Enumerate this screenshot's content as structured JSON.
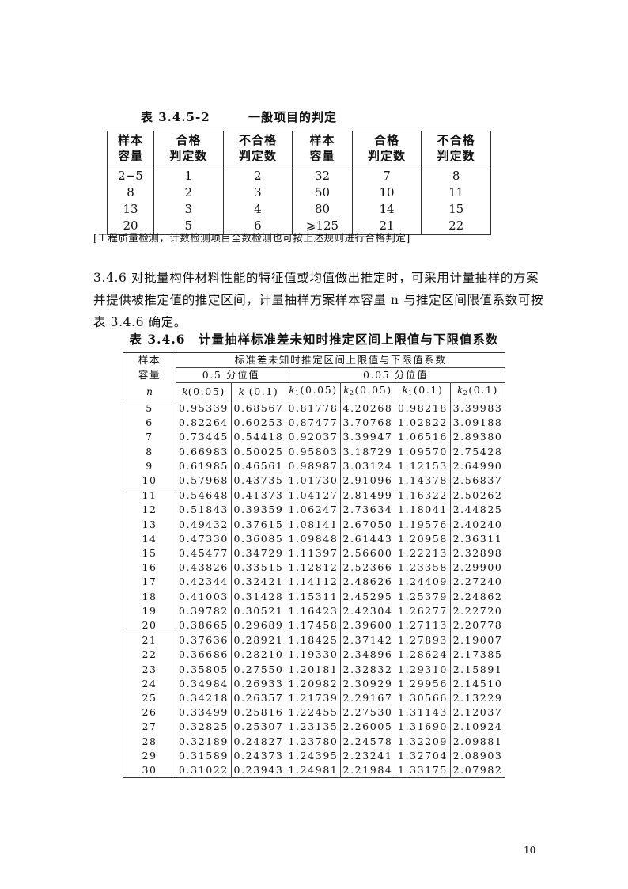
{
  "table1": {
    "number": "表 3.4.5-2",
    "title": "一般项目的判定",
    "headers": [
      [
        "样本",
        "容量"
      ],
      [
        "合格",
        "判定数"
      ],
      [
        "不合格",
        "判定数"
      ],
      [
        "样本",
        "容量"
      ],
      [
        "合格",
        "判定数"
      ],
      [
        "不合格",
        "判定数"
      ]
    ],
    "rows": [
      [
        "2−5",
        "1",
        "2",
        "32",
        "7",
        "8"
      ],
      [
        "8",
        "2",
        "3",
        "50",
        "10",
        "11"
      ],
      [
        "13",
        "3",
        "4",
        "80",
        "14",
        "15"
      ],
      [
        "20",
        "5",
        "6",
        "⩾125",
        "21",
        "22"
      ]
    ],
    "note": "[工程质量检测，计数检测项目全数检测也可按上述规则进行合格判定]"
  },
  "paragraph": {
    "lines": [
      "3.4.6 对批量构件材料性能的特征值或均值做出推定时，可采用计量抽样的方案",
      "并提供被推定值的推定区间，计量抽样方案样本容量 n 与推定区间限值系数可按",
      "表 3.4.6 确定。"
    ]
  },
  "table2": {
    "title": "表 3.4.6　计量抽样标准差未知时推定区间上限值与下限值系数",
    "header_sample": [
      "样本",
      "容量",
      "n"
    ],
    "header_group": "标准差未知时推定区间上限值与下限值系数",
    "header_q05": "0.5 分位值",
    "header_q005": "0.05 分位值",
    "columns": [
      {
        "sym": "k",
        "sub": "",
        "arg": "(0.05)"
      },
      {
        "sym": "k",
        "sub": "",
        "arg": " (0.1)"
      },
      {
        "sym": "k",
        "sub": "1",
        "arg": "(0.05)"
      },
      {
        "sym": "k",
        "sub": "2",
        "arg": "(0.05)"
      },
      {
        "sym": "k",
        "sub": "1",
        "arg": "(0.1)"
      },
      {
        "sym": "k",
        "sub": "2",
        "arg": "(0.1)"
      }
    ],
    "rows": [
      [
        "5",
        "0.95339",
        "0.68567",
        "0.81778",
        "4.20268",
        "0.98218",
        "3.39983"
      ],
      [
        "6",
        "0.82264",
        "0.60253",
        "0.87477",
        "3.70768",
        "1.02822",
        "3.09188"
      ],
      [
        "7",
        "0.73445",
        "0.54418",
        "0.92037",
        "3.39947",
        "1.06516",
        "2.89380"
      ],
      [
        "8",
        "0.66983",
        "0.50025",
        "0.95803",
        "3.18729",
        "1.09570",
        "2.75428"
      ],
      [
        "9",
        "0.61985",
        "0.46561",
        "0.98987",
        "3.03124",
        "1.12153",
        "2.64990"
      ],
      [
        "10",
        "0.57968",
        "0.43735",
        "1.01730",
        "2.91096",
        "1.14378",
        "2.56837"
      ],
      [
        "11",
        "0.54648",
        "0.41373",
        "1.04127",
        "2.81499",
        "1.16322",
        "2.50262"
      ],
      [
        "12",
        "0.51843",
        "0.39359",
        "1.06247",
        "2.73634",
        "1.18041",
        "2.44825"
      ],
      [
        "13",
        "0.49432",
        "0.37615",
        "1.08141",
        "2.67050",
        "1.19576",
        "2.40240"
      ],
      [
        "14",
        "0.47330",
        "0.36085",
        "1.09848",
        "2.61443",
        "1.20958",
        "2.36311"
      ],
      [
        "15",
        "0.45477",
        "0.34729",
        "1.11397",
        "2.56600",
        "1.22213",
        "2.32898"
      ],
      [
        "16",
        "0.43826",
        "0.33515",
        "1.12812",
        "2.52366",
        "1.23358",
        "2.29900"
      ],
      [
        "17",
        "0.42344",
        "0.32421",
        "1.14112",
        "2.48626",
        "1.24409",
        "2.27240"
      ],
      [
        "18",
        "0.41003",
        "0.31428",
        "1.15311",
        "2.45295",
        "1.25379",
        "2.24862"
      ],
      [
        "19",
        "0.39782",
        "0.30521",
        "1.16423",
        "2.42304",
        "1.26277",
        "2.22720"
      ],
      [
        "20",
        "0.38665",
        "0.29689",
        "1.17458",
        "2.39600",
        "1.27113",
        "2.20778"
      ],
      [
        "21",
        "0.37636",
        "0.28921",
        "1.18425",
        "2.37142",
        "1.27893",
        "2.19007"
      ],
      [
        "22",
        "0.36686",
        "0.28210",
        "1.19330",
        "2.34896",
        "1.28624",
        "2.17385"
      ],
      [
        "23",
        "0.35805",
        "0.27550",
        "1.20181",
        "2.32832",
        "1.29310",
        "2.15891"
      ],
      [
        "24",
        "0.34984",
        "0.26933",
        "1.20982",
        "2.30929",
        "1.29956",
        "2.14510"
      ],
      [
        "25",
        "0.34218",
        "0.26357",
        "1.21739",
        "2.29167",
        "1.30566",
        "2.13229"
      ],
      [
        "26",
        "0.33499",
        "0.25816",
        "1.22455",
        "2.27530",
        "1.31143",
        "2.12037"
      ],
      [
        "27",
        "0.32825",
        "0.25307",
        "1.23135",
        "2.26005",
        "1.31690",
        "2.10924"
      ],
      [
        "28",
        "0.32189",
        "0.24827",
        "1.23780",
        "2.24578",
        "1.32209",
        "2.09881"
      ],
      [
        "29",
        "0.31589",
        "0.24373",
        "1.24395",
        "2.23241",
        "1.32704",
        "2.08903"
      ],
      [
        "30",
        "0.31022",
        "0.23943",
        "1.24981",
        "2.21984",
        "1.33175",
        "2.07982"
      ]
    ]
  },
  "page_number": "10"
}
